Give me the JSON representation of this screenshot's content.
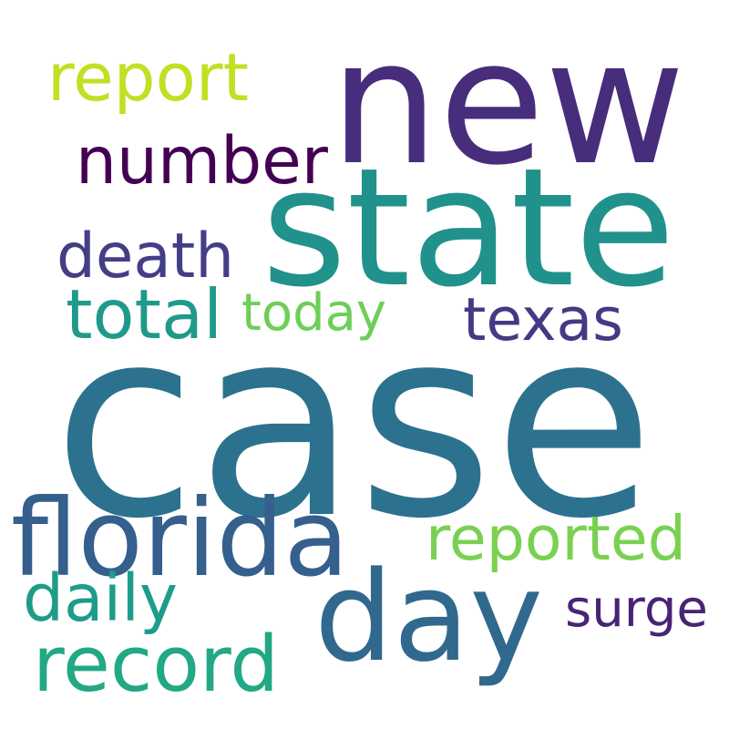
{
  "words": [
    {
      "text": "new",
      "color": "#472d7b"
    },
    {
      "text": "state",
      "color": "#21918c"
    },
    {
      "text": "case",
      "color": "#2c728e"
    },
    {
      "text": "day",
      "color": "#31688e"
    },
    {
      "text": "florida",
      "color": "#355f8d"
    },
    {
      "text": "number",
      "color": "#440154"
    },
    {
      "text": "report",
      "color": "#c2df23"
    },
    {
      "text": "death",
      "color": "#433e85"
    },
    {
      "text": "total",
      "color": "#1f9a8a"
    },
    {
      "text": "today",
      "color": "#6ece58"
    },
    {
      "text": "texas",
      "color": "#443a83"
    },
    {
      "text": "reported",
      "color": "#7ad151"
    },
    {
      "text": "daily",
      "color": "#1e9c89"
    },
    {
      "text": "record",
      "color": "#22a884"
    },
    {
      "text": "surge",
      "color": "#482475"
    }
  ]
}
